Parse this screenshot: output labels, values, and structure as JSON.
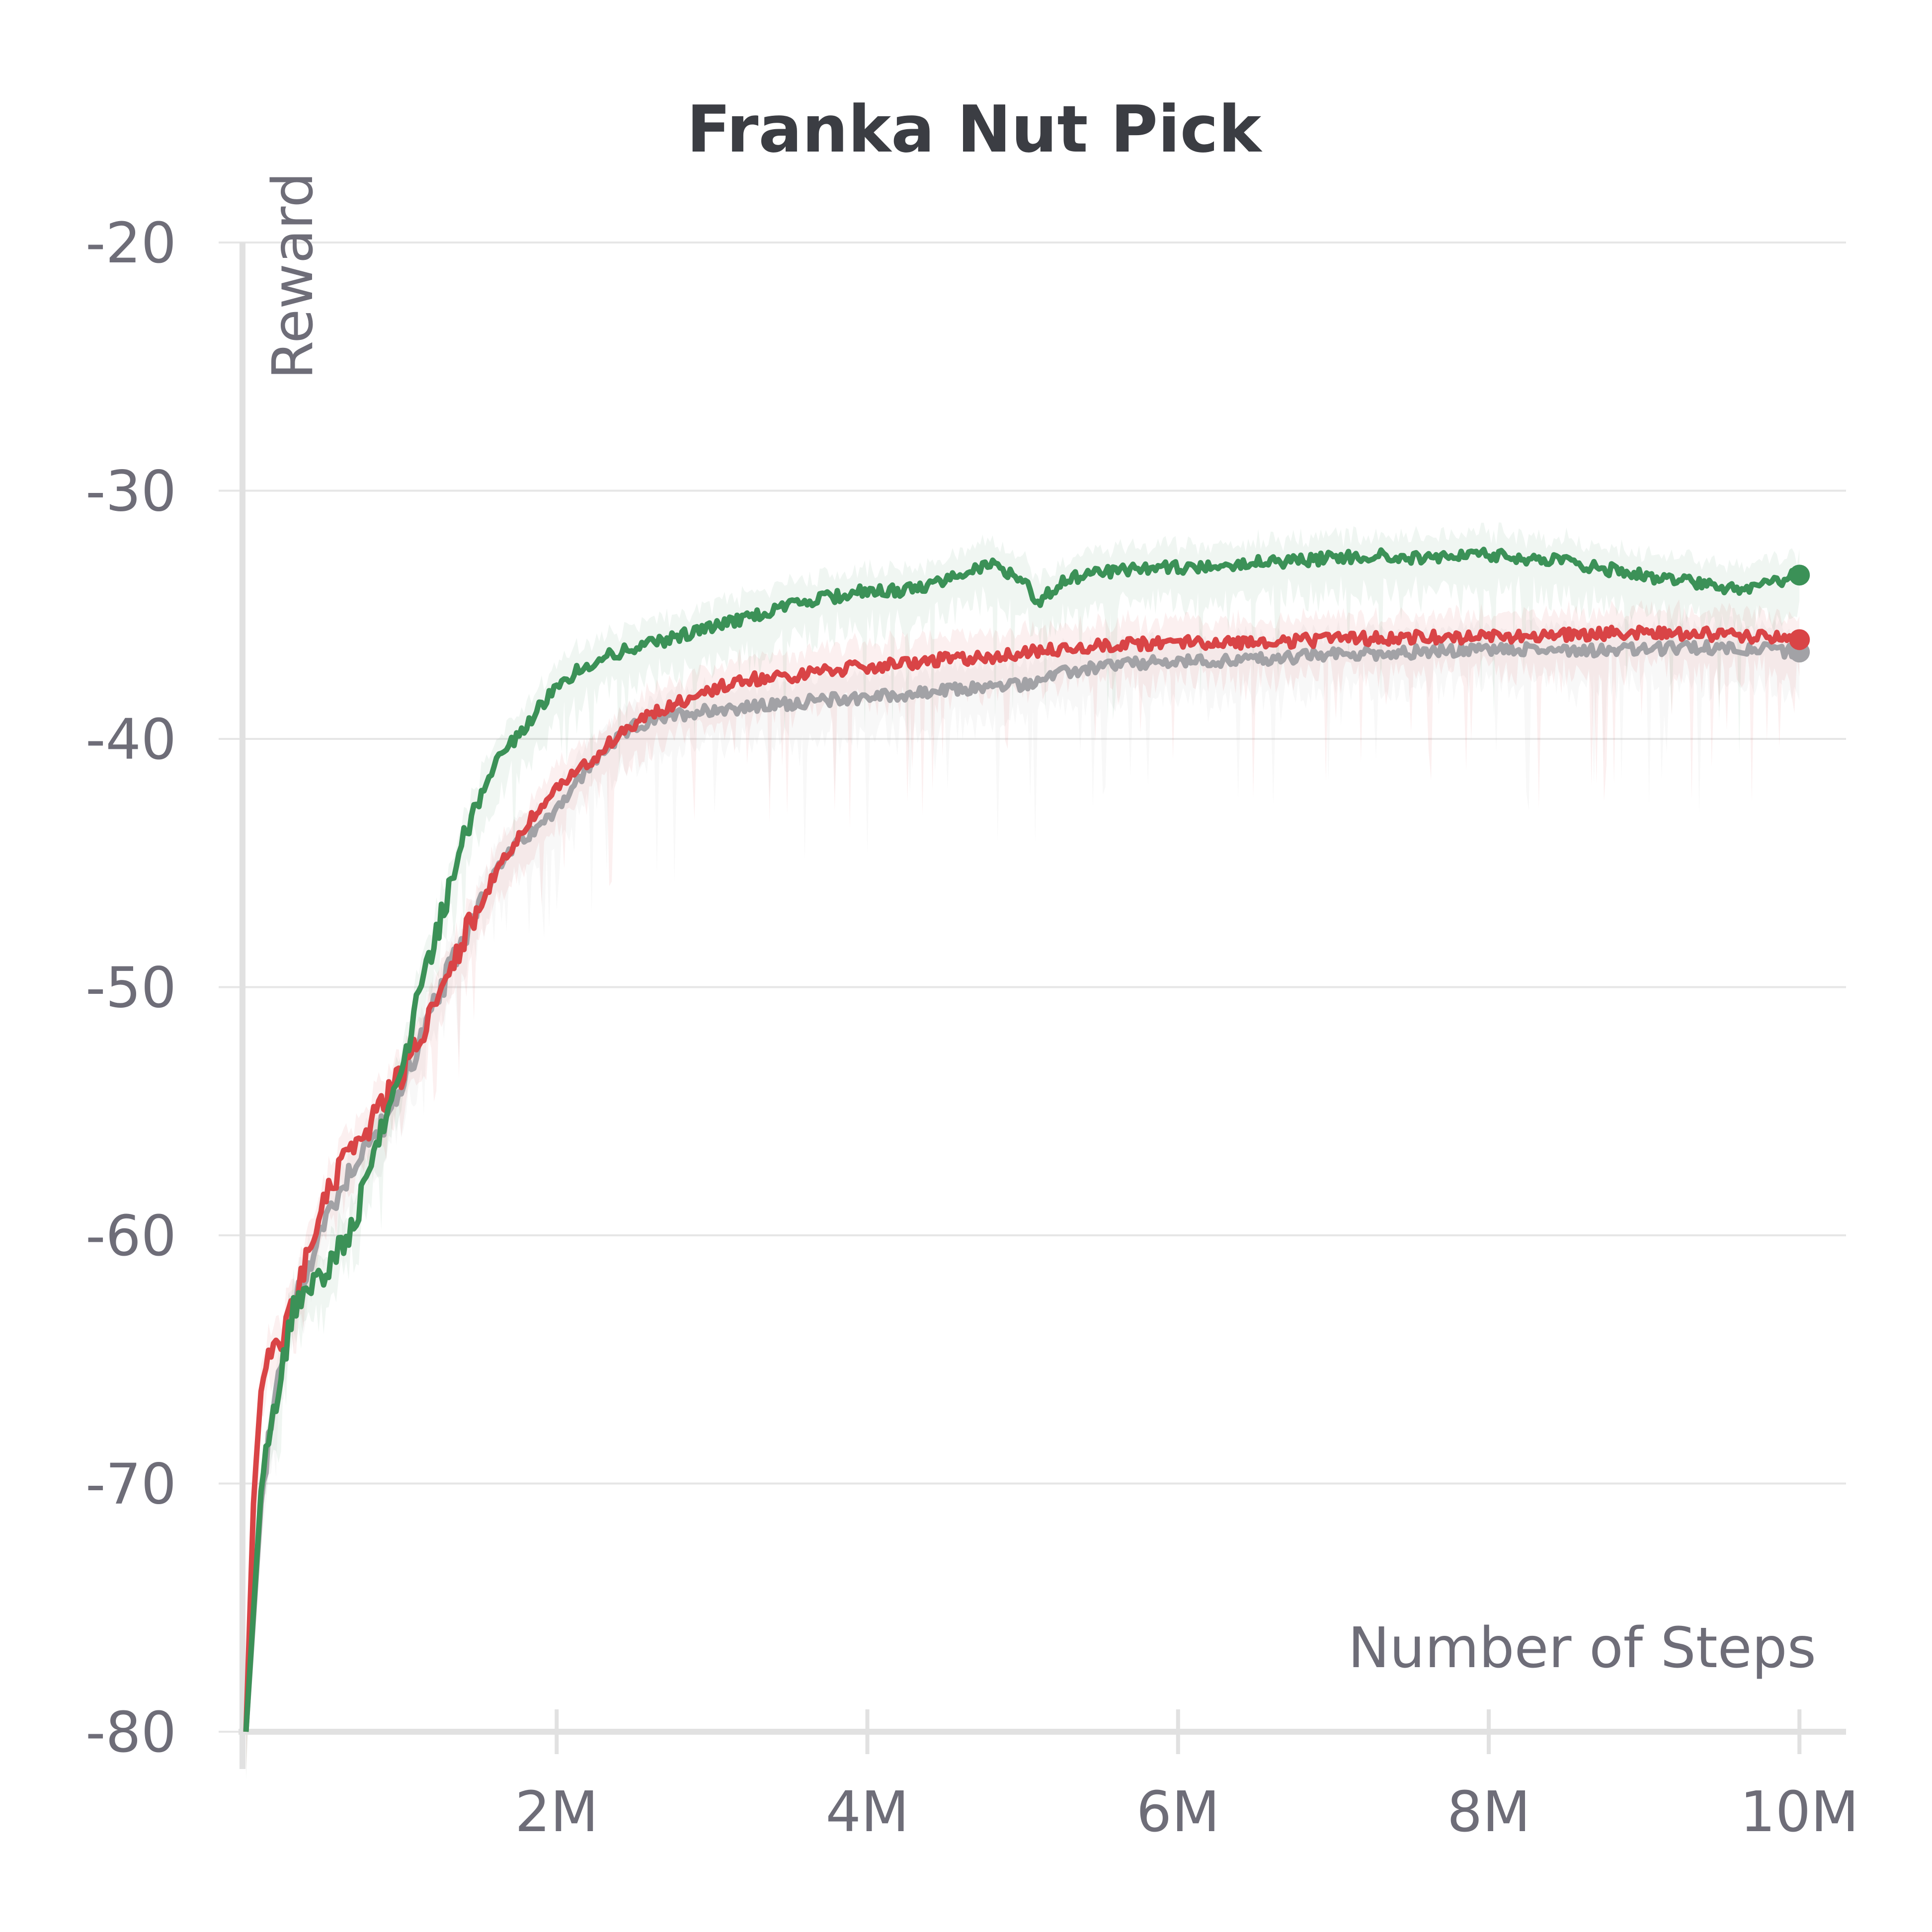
{
  "chart_data": {
    "type": "line",
    "title": "Franka Nut Pick",
    "xlabel": "Number of Steps",
    "ylabel": "Reward",
    "xlim": [
      0,
      10300000
    ],
    "ylim": [
      -80,
      -20
    ],
    "x_ticks": [
      2000000,
      4000000,
      6000000,
      8000000,
      10000000
    ],
    "x_tick_labels": [
      "2M",
      "4M",
      "6M",
      "8M",
      "10M"
    ],
    "y_ticks": [
      -80,
      -70,
      -60,
      -50,
      -40,
      -30,
      -20
    ],
    "y_tick_labels": [
      "-80",
      "-70",
      "-60",
      "-50",
      "-40",
      "-30",
      "-20"
    ],
    "grid": true,
    "series": [
      {
        "color": "#a2a2a6",
        "x": [
          0,
          100000,
          200000,
          300000,
          500000,
          700000,
          900000,
          1100000,
          1300000,
          1500000,
          1700000,
          1900000,
          2100000,
          2300000,
          2500000,
          2800000,
          3000000,
          3300000,
          3600000,
          4000000,
          4300000,
          4600000,
          5000000,
          5300000,
          5600000,
          6000000,
          6500000,
          7000000,
          7500000,
          8000000,
          8500000,
          9000000,
          9500000,
          10000000
        ],
        "values": [
          -80.0,
          -70.5,
          -66.0,
          -63.0,
          -59.5,
          -57.0,
          -55.5,
          -52.5,
          -49.5,
          -46.5,
          -44.5,
          -43.5,
          -42.0,
          -40.5,
          -39.5,
          -39.0,
          -38.8,
          -38.7,
          -38.5,
          -38.3,
          -38.2,
          -38.0,
          -37.8,
          -37.3,
          -37.0,
          -36.9,
          -36.8,
          -36.6,
          -36.5,
          -36.4,
          -36.4,
          -36.4,
          -36.3,
          -36.5
        ]
      },
      {
        "color": "#d94446",
        "x": [
          0,
          50000,
          100000,
          150000,
          200000,
          300000,
          450000,
          600000,
          800000,
          1000000,
          1200000,
          1400000,
          1600000,
          1800000,
          2000000,
          2200000,
          2400000,
          2600000,
          2800000,
          3000000,
          3200000,
          3500000,
          3800000,
          4200000,
          4500000,
          4800000,
          5200000,
          5600000,
          6000000,
          6500000,
          7000000,
          7500000,
          8000000,
          8500000,
          9000000,
          9500000,
          10000000
        ],
        "values": [
          -80.0,
          -70.5,
          -66.0,
          -65.0,
          -64.5,
          -63.0,
          -59.5,
          -57.3,
          -55.5,
          -53.5,
          -51.0,
          -48.0,
          -45.5,
          -43.5,
          -42.0,
          -41.0,
          -39.8,
          -39.0,
          -38.5,
          -38.0,
          -37.6,
          -37.5,
          -37.2,
          -37.0,
          -36.8,
          -36.7,
          -36.4,
          -36.2,
          -36.1,
          -36.1,
          -36.0,
          -35.9,
          -35.9,
          -35.8,
          -35.7,
          -35.8,
          -36.0
        ]
      },
      {
        "color": "#3b9157",
        "x": [
          0,
          100000,
          200000,
          300000,
          500000,
          700000,
          800000,
          1000000,
          1100000,
          1200000,
          1350000,
          1500000,
          1600000,
          1800000,
          2000000,
          2200000,
          2400000,
          2600000,
          2800000,
          3000000,
          3300000,
          3600000,
          4000000,
          4300000,
          4600000,
          4800000,
          5000000,
          5100000,
          5300000,
          5600000,
          6000000,
          6400000,
          6800000,
          7200000,
          7600000,
          8000000,
          8400000,
          8800000,
          9200000,
          9600000,
          10000000
        ],
        "values": [
          -80.0,
          -70.0,
          -66.5,
          -63.0,
          -61.5,
          -59.5,
          -57.0,
          -53.5,
          -50.5,
          -48.5,
          -45.0,
          -42.5,
          -41.0,
          -39.5,
          -37.8,
          -37.0,
          -36.5,
          -36.2,
          -35.8,
          -35.5,
          -35.0,
          -34.5,
          -34.0,
          -34.0,
          -33.3,
          -33.0,
          -33.5,
          -34.5,
          -33.5,
          -33.2,
          -33.1,
          -32.9,
          -32.8,
          -32.6,
          -32.7,
          -32.6,
          -32.8,
          -33.2,
          -33.6,
          -34.0,
          -33.4
        ]
      }
    ]
  }
}
